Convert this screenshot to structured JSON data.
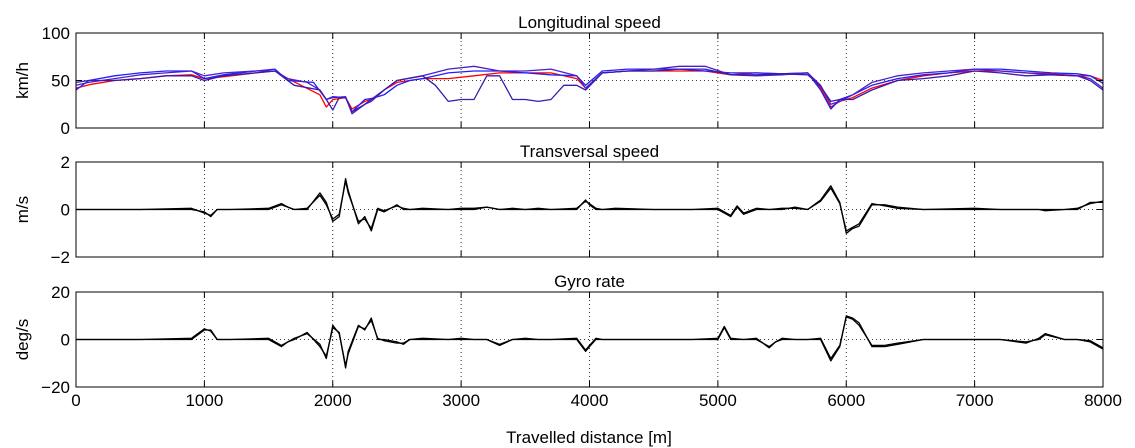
{
  "figure": {
    "xlabel": "Travelled distance [m]",
    "xlim": [
      0,
      8000
    ],
    "xticks": [
      0,
      1000,
      2000,
      3000,
      4000,
      5000,
      6000,
      7000,
      8000
    ]
  },
  "chart_data": [
    {
      "type": "line",
      "title": "Longitudinal speed",
      "xlabel": "",
      "ylabel": "km/h",
      "ylim": [
        0,
        100
      ],
      "yticks": [
        0,
        50,
        100
      ],
      "grid": true,
      "series": [
        {
          "color": "#ff0000",
          "x": [
            0,
            120,
            300,
            500,
            700,
            900,
            1000,
            1150,
            1400,
            1550,
            1650,
            1900,
            1950,
            2000,
            2100,
            2150,
            2250,
            2300,
            2400,
            2500,
            2700,
            2900,
            3100,
            3300,
            3500,
            3700,
            3900,
            3970,
            4100,
            4300,
            4500,
            4700,
            4900,
            5100,
            5300,
            5500,
            5700,
            5800,
            5880,
            5950,
            6050,
            6200,
            6400,
            6600,
            6800,
            7000,
            7200,
            7400,
            7600,
            7800,
            7900,
            8000
          ],
          "y": [
            42,
            46,
            50,
            52,
            55,
            56,
            52,
            54,
            58,
            60,
            52,
            35,
            22,
            30,
            32,
            20,
            28,
            30,
            40,
            48,
            52,
            52,
            55,
            58,
            58,
            58,
            52,
            42,
            58,
            60,
            60,
            60,
            60,
            56,
            58,
            57,
            58,
            42,
            22,
            28,
            32,
            42,
            50,
            55,
            58,
            60,
            60,
            58,
            57,
            55,
            55,
            50
          ]
        },
        {
          "color": "#1f1fff",
          "x": [
            0,
            100,
            300,
            500,
            700,
            900,
            1000,
            1150,
            1400,
            1550,
            1650,
            1850,
            1950,
            2000,
            2100,
            2150,
            2250,
            2300,
            2400,
            2500,
            2600,
            2700,
            2900,
            3100,
            3300,
            3500,
            3700,
            3900,
            3970,
            4100,
            4300,
            4500,
            4700,
            4900,
            5100,
            5300,
            5500,
            5700,
            5800,
            5880,
            5950,
            6050,
            6200,
            6400,
            6600,
            6800,
            7000,
            7200,
            7400,
            7600,
            7800,
            7900,
            8000
          ],
          "y": [
            40,
            50,
            55,
            58,
            60,
            60,
            52,
            56,
            60,
            62,
            50,
            48,
            30,
            33,
            32,
            17,
            30,
            31,
            35,
            45,
            50,
            52,
            58,
            60,
            60,
            58,
            56,
            55,
            45,
            60,
            62,
            62,
            62,
            60,
            58,
            58,
            57,
            58,
            40,
            20,
            30,
            35,
            45,
            52,
            56,
            58,
            62,
            62,
            60,
            58,
            57,
            55,
            47
          ]
        },
        {
          "color": "#4a20c8",
          "x": [
            0,
            100,
            300,
            500,
            700,
            900,
            1000,
            1150,
            1400,
            1550,
            1650,
            1800,
            1900,
            1950,
            2000,
            2100,
            2150,
            2250,
            2300,
            2400,
            2500,
            2700,
            2900,
            3100,
            3300,
            3500,
            3700,
            3900,
            3970,
            4100,
            4300,
            4500,
            4700,
            4900,
            5100,
            5300,
            5500,
            5700,
            5800,
            5880,
            5950,
            6050,
            6200,
            6400,
            6600,
            6800,
            7000,
            7200,
            7400,
            7600,
            7800,
            7900,
            8000
          ],
          "y": [
            45,
            48,
            52,
            56,
            58,
            60,
            55,
            58,
            60,
            60,
            52,
            48,
            40,
            30,
            32,
            33,
            15,
            25,
            28,
            40,
            50,
            55,
            62,
            65,
            60,
            60,
            62,
            55,
            42,
            58,
            60,
            62,
            65,
            65,
            56,
            55,
            56,
            58,
            45,
            25,
            28,
            35,
            48,
            55,
            58,
            60,
            62,
            60,
            58,
            56,
            55,
            52,
            42
          ]
        },
        {
          "color": "#3a1ab0",
          "x": [
            0,
            100,
            300,
            500,
            700,
            900,
            1000,
            1150,
            1400,
            1550,
            1700,
            1900,
            1950,
            2000,
            2050,
            2100,
            2150,
            2250,
            2300,
            2400,
            2500,
            2700,
            2800,
            2900,
            3000,
            3100,
            3200,
            3300,
            3400,
            3500,
            3600,
            3700,
            3800,
            3900,
            3970,
            4100,
            4300,
            4500,
            4700,
            4900,
            5100,
            5300,
            5500,
            5700,
            5800,
            5880,
            5950,
            6050,
            6200,
            6400,
            6600,
            6800,
            7000,
            7200,
            7400,
            7600,
            7800,
            7900,
            8000
          ],
          "y": [
            48,
            50,
            50,
            52,
            55,
            55,
            50,
            55,
            58,
            60,
            45,
            40,
            30,
            19,
            32,
            32,
            17,
            25,
            30,
            40,
            50,
            55,
            45,
            28,
            30,
            30,
            55,
            55,
            30,
            30,
            28,
            30,
            45,
            45,
            40,
            58,
            60,
            60,
            62,
            62,
            56,
            56,
            57,
            56,
            44,
            28,
            30,
            30,
            40,
            50,
            52,
            55,
            60,
            58,
            55,
            56,
            55,
            50,
            40
          ]
        }
      ]
    },
    {
      "type": "line",
      "title": "Transversal speed",
      "xlabel": "",
      "ylabel": "m/s",
      "ylim": [
        -2,
        2
      ],
      "yticks": [
        -2,
        0,
        2
      ],
      "grid": true,
      "series": [
        {
          "color": "#000000",
          "x": [
            0,
            500,
            900,
            1000,
            1050,
            1100,
            1200,
            1500,
            1600,
            1650,
            1700,
            1800,
            1900,
            1950,
            2000,
            2050,
            2100,
            2120,
            2200,
            2250,
            2300,
            2350,
            2400,
            2500,
            2550,
            2600,
            2700,
            2900,
            3000,
            3100,
            3200,
            3300,
            3400,
            3500,
            3600,
            3700,
            3900,
            3970,
            4000,
            4050,
            4100,
            4200,
            4500,
            4800,
            5000,
            5100,
            5150,
            5200,
            5300,
            5400,
            5500,
            5600,
            5700,
            5800,
            5880,
            5950,
            6000,
            6050,
            6100,
            6200,
            6300,
            6400,
            6600,
            7000,
            7200,
            7400,
            7500,
            7550,
            7700,
            7800,
            7900,
            8000
          ],
          "y": [
            0,
            0,
            0,
            -0.1,
            -0.3,
            0,
            0,
            0,
            0.2,
            0.1,
            0,
            0,
            0.7,
            0.3,
            -0.5,
            -0.3,
            1.3,
            0.8,
            -0.6,
            -0.3,
            -0.9,
            0,
            -0.1,
            0.2,
            0,
            0,
            0,
            0,
            0,
            0,
            0.1,
            0,
            0,
            0,
            0,
            0,
            0,
            0.4,
            0.2,
            0,
            0,
            0,
            0,
            0,
            0,
            -0.3,
            0.1,
            -0.2,
            0,
            0,
            0,
            0.1,
            0,
            0.4,
            1.0,
            0.3,
            -1.0,
            -0.8,
            -0.7,
            0.2,
            0.2,
            0.1,
            0,
            0,
            0,
            0,
            0,
            0,
            0,
            0,
            0.3,
            0.3
          ]
        },
        {
          "color": "#000000",
          "x": [
            0,
            500,
            900,
            1000,
            1050,
            1100,
            1200,
            1500,
            1600,
            1650,
            1700,
            1800,
            1900,
            1950,
            2000,
            2050,
            2100,
            2120,
            2200,
            2250,
            2300,
            2350,
            2400,
            2500,
            2550,
            2600,
            2700,
            2900,
            3000,
            3100,
            3200,
            3300,
            3400,
            3500,
            3600,
            3700,
            3900,
            3970,
            4000,
            4050,
            4100,
            4200,
            4500,
            4800,
            5000,
            5100,
            5150,
            5200,
            5300,
            5400,
            5500,
            5600,
            5700,
            5800,
            5880,
            5950,
            6000,
            6050,
            6100,
            6200,
            6300,
            6400,
            6600,
            7000,
            7200,
            7400,
            7500,
            7550,
            7700,
            7800,
            7900,
            8000
          ],
          "y": [
            0,
            0,
            0.05,
            -0.15,
            -0.25,
            0,
            0,
            0.05,
            0.25,
            0.1,
            0,
            0.05,
            0.6,
            0.2,
            -0.4,
            -0.2,
            1.2,
            0.7,
            -0.5,
            -0.4,
            -0.8,
            0.05,
            -0.05,
            0.15,
            0.05,
            0,
            0.05,
            0,
            0.05,
            0.05,
            0.1,
            0,
            0.05,
            0,
            0.05,
            0,
            0.05,
            0.35,
            0.25,
            0.05,
            0,
            0.05,
            0,
            0,
            0.05,
            -0.25,
            0.15,
            -0.15,
            0.05,
            0,
            0.05,
            0.05,
            0,
            0.35,
            0.9,
            0.25,
            -0.9,
            -0.75,
            -0.6,
            0.25,
            0.15,
            0.05,
            0,
            0.05,
            0,
            0,
            0,
            -0.05,
            0,
            0.05,
            0.25,
            0.35
          ]
        }
      ]
    },
    {
      "type": "line",
      "title": "Gyro rate",
      "xlabel": "",
      "ylabel": "deg/s",
      "ylim": [
        -20,
        20
      ],
      "yticks": [
        -20,
        0,
        20
      ],
      "grid": true,
      "series": [
        {
          "color": "#000000",
          "x": [
            0,
            500,
            900,
            1000,
            1050,
            1100,
            1200,
            1500,
            1600,
            1650,
            1700,
            1800,
            1900,
            1950,
            2000,
            2050,
            2100,
            2120,
            2200,
            2250,
            2300,
            2350,
            2400,
            2500,
            2550,
            2600,
            2700,
            2900,
            3000,
            3100,
            3200,
            3300,
            3400,
            3500,
            3600,
            3700,
            3900,
            3970,
            4000,
            4050,
            4100,
            4200,
            4500,
            4800,
            5000,
            5050,
            5100,
            5200,
            5300,
            5400,
            5450,
            5500,
            5600,
            5700,
            5800,
            5880,
            5950,
            6000,
            6050,
            6100,
            6200,
            6300,
            6400,
            6600,
            7000,
            7200,
            7400,
            7500,
            7550,
            7700,
            7800,
            7900,
            8000
          ],
          "y": [
            0,
            0,
            0,
            4,
            4,
            0,
            0,
            0,
            -3,
            -1,
            0,
            3,
            -3,
            -7,
            5,
            3,
            -12,
            -5,
            6,
            4,
            9,
            0,
            0,
            -1,
            -2,
            0,
            0,
            0,
            0,
            0,
            0,
            -2,
            0,
            0,
            0,
            0,
            0,
            -5,
            -3,
            0,
            0,
            0,
            0,
            0,
            0,
            5,
            0,
            0,
            0,
            -3,
            -1,
            0,
            0,
            0,
            0,
            -9,
            -3,
            10,
            9,
            7,
            -3,
            -3,
            -2,
            0,
            0,
            0,
            -1,
            0,
            2,
            0,
            0,
            -1,
            -4
          ]
        },
        {
          "color": "#000000",
          "x": [
            0,
            500,
            900,
            1000,
            1050,
            1100,
            1200,
            1500,
            1600,
            1650,
            1700,
            1800,
            1900,
            1950,
            2000,
            2050,
            2100,
            2120,
            2200,
            2250,
            2300,
            2350,
            2400,
            2500,
            2550,
            2600,
            2700,
            2900,
            3000,
            3100,
            3200,
            3300,
            3400,
            3500,
            3600,
            3700,
            3900,
            3970,
            4000,
            4050,
            4100,
            4200,
            4500,
            4800,
            5000,
            5050,
            5100,
            5200,
            5300,
            5400,
            5450,
            5500,
            5600,
            5700,
            5800,
            5880,
            5950,
            6000,
            6050,
            6100,
            6200,
            6300,
            6400,
            6600,
            7000,
            7200,
            7400,
            7500,
            7550,
            7700,
            7800,
            7900,
            8000
          ],
          "y": [
            0,
            0,
            0.5,
            4.5,
            3.5,
            0,
            0,
            0.5,
            -2.5,
            -1,
            0.5,
            2.5,
            -2,
            -8,
            6,
            2.5,
            -11,
            -6,
            5.5,
            4.5,
            8,
            0.5,
            -0.5,
            -1.5,
            -1.5,
            0,
            0.5,
            0,
            0.5,
            0,
            0,
            -2.5,
            0,
            0.5,
            0,
            0,
            0.5,
            -4.5,
            -2.5,
            0.5,
            0,
            0,
            0,
            0,
            0.5,
            5.5,
            0.5,
            0,
            0.5,
            -3.5,
            -1,
            0.5,
            0,
            0,
            0.5,
            -8,
            -2.5,
            9.5,
            8.5,
            6,
            -2.5,
            -2.5,
            -1.5,
            0,
            0,
            0,
            -1.5,
            0.5,
            2.5,
            0,
            0,
            -0.5,
            -3.5
          ]
        }
      ]
    }
  ]
}
